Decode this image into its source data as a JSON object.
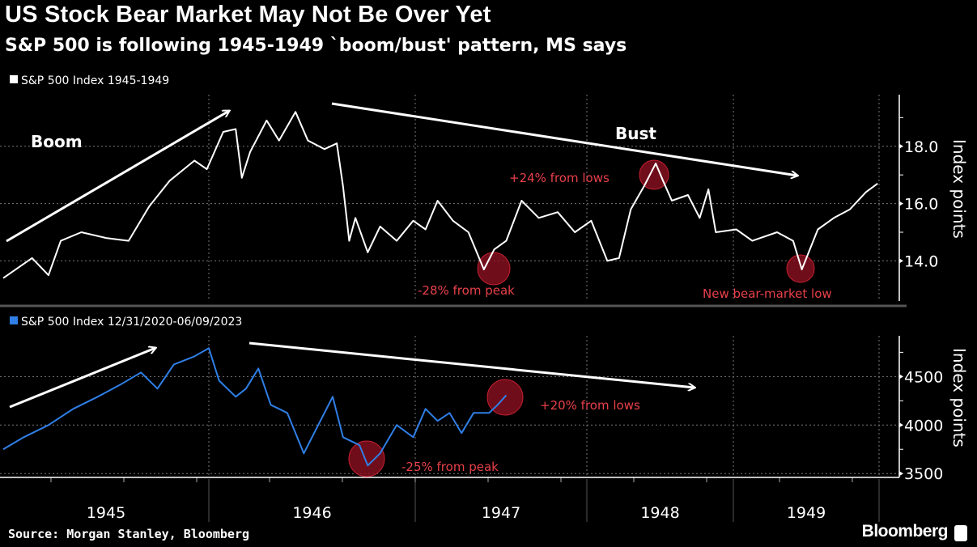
{
  "header": {
    "title": "US Stock Bear Market May Not Be Over Yet",
    "subtitle": "S&P 500 is following 1945-1949 `boom/bust' pattern, MS says"
  },
  "footer": {
    "source": "Source: Morgan Stanley, Bloomberg",
    "brand": "Bloomberg"
  },
  "colors": {
    "background": "#000000",
    "series_1945": "#ffffff",
    "series_2020": "#2f7fe6",
    "annotation": "#e8404a",
    "highlight_circle": "#8c1020"
  },
  "chart_data": [
    {
      "type": "line",
      "legend": "S&P 500 Index 1945-1949",
      "ylabel": "Index points",
      "ylim": [
        12.6,
        19.8
      ],
      "yticks": [
        "18.0",
        "16.0",
        "14.0"
      ],
      "ytick_values": [
        18,
        16,
        14
      ],
      "x_tick_labels": [
        "1945",
        "1946",
        "1947",
        "1948",
        "1949"
      ],
      "grid": true,
      "series": [
        {
          "name": "S&P 500 Index 1945-1949",
          "x": [
            1945.0,
            1945.14,
            1945.22,
            1945.28,
            1945.38,
            1945.5,
            1945.61,
            1945.71,
            1945.81,
            1945.93,
            1945.99,
            1946.07,
            1946.13,
            1946.16,
            1946.2,
            1946.28,
            1946.34,
            1946.42,
            1946.48,
            1946.56,
            1946.62,
            1946.65,
            1946.68,
            1946.71,
            1946.77,
            1946.83,
            1946.91,
            1946.99,
            1947.06,
            1947.13,
            1947.22,
            1947.31,
            1947.4,
            1947.46,
            1947.53,
            1947.62,
            1947.72,
            1947.83,
            1947.93,
            1948.03,
            1948.14,
            1948.22,
            1948.3,
            1948.39,
            1948.47,
            1948.52,
            1948.58,
            1948.69,
            1948.77,
            1948.83,
            1948.88,
            1949.02,
            1949.13,
            1949.3,
            1949.41,
            1949.47,
            1949.58,
            1949.69,
            1949.8,
            1949.91,
            1949.99
          ],
          "y": [
            13.4,
            14.1,
            13.5,
            14.7,
            15.0,
            14.8,
            14.7,
            15.9,
            16.8,
            17.5,
            17.2,
            18.5,
            18.6,
            16.9,
            17.8,
            18.9,
            18.2,
            19.2,
            18.2,
            17.9,
            18.1,
            16.6,
            14.7,
            15.5,
            14.3,
            15.2,
            14.7,
            15.4,
            15.1,
            16.1,
            15.4,
            15.0,
            13.7,
            14.4,
            14.7,
            16.1,
            15.5,
            15.7,
            15.0,
            15.4,
            14.0,
            14.1,
            15.8,
            16.6,
            17.4,
            16.8,
            16.1,
            16.3,
            15.5,
            16.5,
            15.0,
            15.1,
            14.7,
            15.0,
            14.7,
            13.7,
            15.1,
            15.5,
            15.8,
            16.4,
            16.7
          ]
        }
      ],
      "annotations": [
        {
          "text": "Boom"
        },
        {
          "text": "Bust"
        },
        {
          "text": "+24% from lows"
        },
        {
          "text": "-28% from peak"
        },
        {
          "text": "New bear-market low"
        }
      ]
    },
    {
      "type": "line",
      "legend": "S&P 500 Index 12/31/2020-06/09/2023",
      "ylabel": "Index points",
      "ylim": [
        3460,
        4920
      ],
      "yticks": [
        "4500",
        "4000",
        "3500"
      ],
      "ytick_values": [
        4500,
        4000,
        3500
      ],
      "grid": true,
      "series": [
        {
          "name": "S&P 500 Index 12/31/2020-06/09/2023",
          "x": [
            1945.0,
            1945.1,
            1945.22,
            1945.34,
            1945.46,
            1945.57,
            1945.67,
            1945.75,
            1945.83,
            1945.93,
            1946.0,
            1946.05,
            1946.13,
            1946.18,
            1946.24,
            1946.3,
            1946.38,
            1946.46,
            1946.52,
            1946.6,
            1946.65,
            1946.73,
            1946.77,
            1946.83,
            1946.91,
            1946.99,
            1947.06,
            1947.13,
            1947.2,
            1947.27,
            1947.34,
            1947.43,
            1947.48,
            1947.53
          ],
          "y": [
            3750,
            3875,
            4000,
            4167,
            4292,
            4417,
            4542,
            4375,
            4625,
            4708,
            4792,
            4458,
            4292,
            4375,
            4583,
            4208,
            4125,
            3708,
            3958,
            4292,
            3875,
            3792,
            3583,
            3708,
            4000,
            3875,
            4167,
            4042,
            4125,
            3917,
            4125,
            4125,
            4208,
            4308
          ]
        }
      ],
      "annotations": [
        {
          "text": "+20% from lows"
        },
        {
          "text": "-25% from peak"
        }
      ]
    }
  ]
}
